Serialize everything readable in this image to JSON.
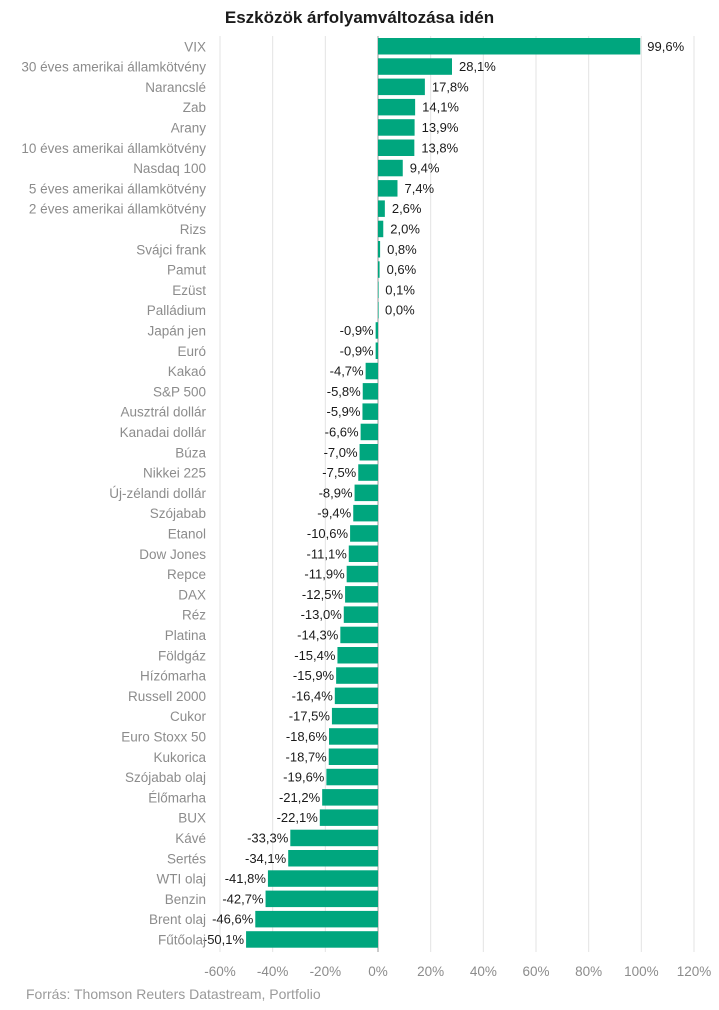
{
  "chart_data": {
    "type": "bar",
    "orientation": "horizontal",
    "title": "Eszközök árfolyamváltozása idén",
    "source": "Forrás: Thomson Reuters Datastream, Portfolio",
    "bar_color": "#00a67e",
    "grid": true,
    "xlim": [
      -60,
      120
    ],
    "x_ticks": [
      -60,
      -40,
      -20,
      0,
      20,
      40,
      60,
      80,
      100,
      120
    ],
    "x_tick_labels": [
      "-60%",
      "-40%",
      "-20%",
      "0%",
      "20%",
      "40%",
      "60%",
      "80%",
      "100%",
      "120%"
    ],
    "categories": [
      "VIX",
      "30 éves amerikai államkötvény",
      "Narancslé",
      "Zab",
      "Arany",
      "10 éves amerikai államkötvény",
      "Nasdaq 100",
      "5 éves amerikai államkötvény",
      "2 éves amerikai államkötvény",
      "Rizs",
      "Svájci frank",
      "Pamut",
      "Ezüst",
      "Palládium",
      "Japán jen",
      "Euró",
      "Kakaó",
      "S&P 500",
      "Ausztrál dollár",
      "Kanadai dollár",
      "Búza",
      "Nikkei 225",
      "Új-zélandi dollár",
      "Szójabab",
      "Etanol",
      "Dow Jones",
      "Repce",
      "DAX",
      "Réz",
      "Platina",
      "Földgáz",
      "Hízómarha",
      "Russell 2000",
      "Cukor",
      "Euro Stoxx 50",
      "Kukorica",
      "Szójabab olaj",
      "Élőmarha",
      "BUX",
      "Kávé",
      "Sertés",
      "WTI olaj",
      "Benzin",
      "Brent olaj",
      "Fűtőolaj"
    ],
    "values": [
      99.6,
      28.1,
      17.8,
      14.1,
      13.9,
      13.8,
      9.4,
      7.4,
      2.6,
      2.0,
      0.8,
      0.6,
      0.1,
      0.0,
      -0.9,
      -0.9,
      -4.7,
      -5.8,
      -5.9,
      -6.6,
      -7.0,
      -7.5,
      -8.9,
      -9.4,
      -10.6,
      -11.1,
      -11.9,
      -12.5,
      -13.0,
      -14.3,
      -15.4,
      -15.9,
      -16.4,
      -17.5,
      -18.6,
      -18.7,
      -19.6,
      -21.2,
      -22.1,
      -33.3,
      -34.1,
      -41.8,
      -42.7,
      -46.6,
      -50.1
    ],
    "value_labels": [
      "99,6%",
      "28,1%",
      "17,8%",
      "14,1%",
      "13,9%",
      "13,8%",
      "9,4%",
      "7,4%",
      "2,6%",
      "2,0%",
      "0,8%",
      "0,6%",
      "0,1%",
      "0,0%",
      "-0,9%",
      "-0,9%",
      "-4,7%",
      "-5,8%",
      "-5,9%",
      "-6,6%",
      "-7,0%",
      "-7,5%",
      "-8,9%",
      "-9,4%",
      "-10,6%",
      "-11,1%",
      "-11,9%",
      "-12,5%",
      "-13,0%",
      "-14,3%",
      "-15,4%",
      "-15,9%",
      "-16,4%",
      "-17,5%",
      "-18,6%",
      "-18,7%",
      "-19,6%",
      "-21,2%",
      "-22,1%",
      "-33,3%",
      "-34,1%",
      "-41,8%",
      "-42,7%",
      "-46,6%",
      "-50,1%"
    ]
  }
}
